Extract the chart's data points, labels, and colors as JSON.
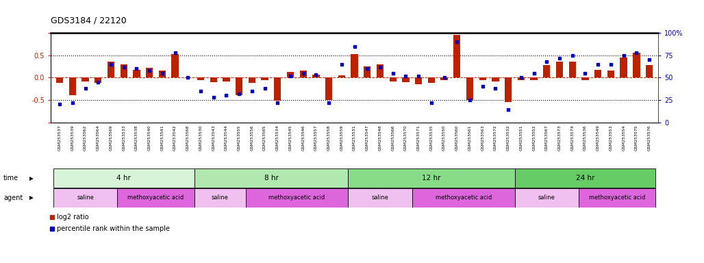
{
  "title": "GDS3184 / 22120",
  "samples": [
    "GSM253537",
    "GSM253539",
    "GSM253562",
    "GSM253564",
    "GSM253569",
    "GSM253533",
    "GSM253538",
    "GSM253540",
    "GSM253541",
    "GSM253542",
    "GSM253568",
    "GSM253530",
    "GSM253543",
    "GSM253544",
    "GSM253555",
    "GSM253556",
    "GSM253565",
    "GSM253534",
    "GSM253545",
    "GSM253546",
    "GSM253557",
    "GSM253558",
    "GSM253559",
    "GSM253531",
    "GSM253547",
    "GSM253548",
    "GSM253566",
    "GSM253570",
    "GSM253571",
    "GSM253535",
    "GSM253550",
    "GSM253560",
    "GSM253561",
    "GSM253563",
    "GSM253572",
    "GSM253532",
    "GSM253551",
    "GSM253552",
    "GSM253567",
    "GSM253573",
    "GSM253574",
    "GSM253536",
    "GSM253549",
    "GSM253553",
    "GSM253554",
    "GSM253575",
    "GSM253576"
  ],
  "log2_ratio": [
    -0.12,
    -0.4,
    -0.08,
    -0.12,
    0.35,
    0.3,
    0.18,
    0.22,
    0.15,
    0.52,
    0.0,
    -0.05,
    -0.1,
    -0.08,
    -0.4,
    -0.12,
    -0.05,
    -0.52,
    0.12,
    0.15,
    0.06,
    -0.5,
    0.05,
    0.52,
    0.25,
    0.3,
    -0.08,
    -0.1,
    -0.15,
    -0.12,
    -0.05,
    0.95,
    -0.5,
    -0.05,
    -0.08,
    -0.55,
    -0.05,
    -0.05,
    0.28,
    0.35,
    0.35,
    -0.05,
    0.18,
    0.15,
    0.45,
    0.55,
    0.28
  ],
  "percentile": [
    20,
    22,
    38,
    45,
    65,
    62,
    60,
    58,
    55,
    78,
    50,
    35,
    28,
    30,
    32,
    35,
    38,
    22,
    52,
    55,
    53,
    22,
    65,
    85,
    60,
    62,
    55,
    52,
    52,
    22,
    50,
    90,
    25,
    40,
    38,
    14,
    50,
    55,
    68,
    72,
    75,
    55,
    65,
    65,
    75,
    78,
    70
  ],
  "time_groups": [
    {
      "label": "4 hr",
      "start": 0,
      "end": 10,
      "color": "#d8f4d8"
    },
    {
      "label": "8 hr",
      "start": 11,
      "end": 22,
      "color": "#b0e8b0"
    },
    {
      "label": "12 hr",
      "start": 23,
      "end": 35,
      "color": "#88dc88"
    },
    {
      "label": "24 hr",
      "start": 36,
      "end": 46,
      "color": "#66cc66"
    }
  ],
  "agent_groups": [
    {
      "label": "saline",
      "start": 0,
      "end": 4,
      "color": "#f0c0f0"
    },
    {
      "label": "methoxyacetic acid",
      "start": 5,
      "end": 10,
      "color": "#dd66dd"
    },
    {
      "label": "saline",
      "start": 11,
      "end": 14,
      "color": "#f0c0f0"
    },
    {
      "label": "methoxyacetic acid",
      "start": 15,
      "end": 22,
      "color": "#dd66dd"
    },
    {
      "label": "saline",
      "start": 23,
      "end": 27,
      "color": "#f0c0f0"
    },
    {
      "label": "methoxyacetic acid",
      "start": 28,
      "end": 35,
      "color": "#dd66dd"
    },
    {
      "label": "saline",
      "start": 36,
      "end": 40,
      "color": "#f0c0f0"
    },
    {
      "label": "methoxyacetic acid",
      "start": 41,
      "end": 46,
      "color": "#dd66dd"
    }
  ],
  "bar_color": "#bb2200",
  "dot_color": "#0000bb",
  "ylim": [
    -1.0,
    1.0
  ],
  "y2lim": [
    0,
    100
  ],
  "yticks_left": [
    -1.0,
    -0.5,
    0.0,
    0.5,
    1.0
  ],
  "yticks_right": [
    0,
    25,
    50,
    75,
    100
  ],
  "dotted_yvals": [
    -0.5,
    0.5
  ],
  "zero_line": 0.0,
  "xtick_bg": "#d8d8d8",
  "bg": "#ffffff"
}
